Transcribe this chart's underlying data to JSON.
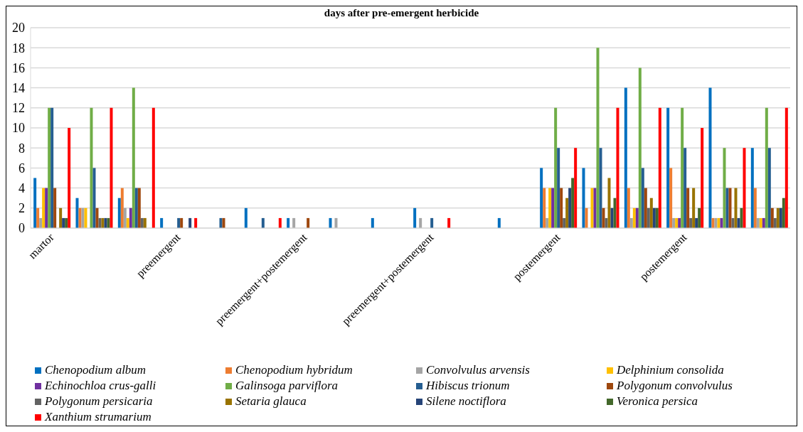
{
  "chart_data": {
    "type": "bar",
    "title": "days after pre-emergent herbicide",
    "categories": [
      "martor",
      null,
      null,
      "preemergent",
      null,
      null,
      "preemergent+postemergent",
      null,
      null,
      "preemergent+postemergent",
      null,
      null,
      "postemergent",
      null,
      null,
      "postemergent",
      null,
      null
    ],
    "ylim": [
      0,
      20
    ],
    "yticks": [
      0,
      2,
      4,
      6,
      8,
      10,
      12,
      14,
      16,
      18,
      20
    ],
    "grid": "y",
    "legend": "bottom",
    "series": [
      {
        "name": "Chenopodium album",
        "color": "#0070c0",
        "values": [
          5,
          3,
          3,
          1,
          0,
          2,
          1,
          1,
          1,
          2,
          0,
          1,
          6,
          6,
          14,
          12,
          14,
          8
        ]
      },
      {
        "name": "Chenopodium hybridum",
        "color": "#ed7d31",
        "values": [
          2,
          2,
          4,
          0,
          0,
          0,
          0,
          0,
          0,
          0,
          0,
          0,
          4,
          2,
          4,
          6,
          1,
          4
        ]
      },
      {
        "name": "Convolvulus arvensis",
        "color": "#a5a5a5",
        "values": [
          1,
          2,
          2,
          0,
          0,
          0,
          1,
          1,
          0,
          1,
          0,
          0,
          1,
          0,
          1,
          1,
          1,
          1
        ]
      },
      {
        "name": "Delphinium consolida",
        "color": "#ffc000",
        "values": [
          4,
          2,
          1,
          0,
          0,
          0,
          0,
          0,
          0,
          0,
          0,
          0,
          4,
          4,
          2,
          1,
          1,
          1
        ]
      },
      {
        "name": "Echinochloa crus-galli",
        "color": "#7030a0",
        "values": [
          4,
          0,
          2,
          0,
          0,
          0,
          0,
          0,
          0,
          0,
          0,
          0,
          4,
          4,
          2,
          1,
          1,
          1
        ]
      },
      {
        "name": "Galinsoga parviflora",
        "color": "#70ad47",
        "values": [
          12,
          12,
          14,
          0,
          0,
          0,
          0,
          0,
          0,
          0,
          0,
          0,
          12,
          18,
          16,
          12,
          8,
          12
        ]
      },
      {
        "name": "Hibiscus trionum",
        "color": "#255e91",
        "values": [
          12,
          6,
          4,
          1,
          1,
          1,
          0,
          0,
          0,
          1,
          0,
          0,
          8,
          8,
          6,
          8,
          4,
          8
        ]
      },
      {
        "name": "Polygonum convolvulus",
        "color": "#9e480e",
        "values": [
          4,
          2,
          4,
          1,
          1,
          0,
          1,
          0,
          0,
          0,
          0,
          0,
          4,
          2,
          4,
          4,
          4,
          2
        ]
      },
      {
        "name": "Polygonum persicaria",
        "color": "#636363",
        "values": [
          0,
          1,
          1,
          0,
          0,
          0,
          0,
          0,
          0,
          0,
          0,
          0,
          1,
          1,
          2,
          1,
          1,
          1
        ]
      },
      {
        "name": "Setaria glauca",
        "color": "#997300",
        "values": [
          2,
          1,
          1,
          0,
          0,
          0,
          0,
          0,
          0,
          0,
          0,
          0,
          3,
          5,
          3,
          4,
          4,
          2
        ]
      },
      {
        "name": "Silene noctiflora",
        "color": "#264478",
        "values": [
          1,
          1,
          0,
          1,
          0,
          0,
          0,
          0,
          0,
          0,
          0,
          0,
          4,
          2,
          2,
          1,
          1,
          2
        ]
      },
      {
        "name": "Veronica persica",
        "color": "#43682b",
        "values": [
          1,
          1,
          0,
          0,
          0,
          0,
          0,
          0,
          0,
          0,
          0,
          0,
          5,
          3,
          2,
          2,
          2,
          3
        ]
      },
      {
        "name": "Xanthium strumarium",
        "color": "#ff0000",
        "values": [
          10,
          12,
          12,
          1,
          0,
          1,
          0,
          0,
          0,
          1,
          0,
          0,
          8,
          12,
          12,
          10,
          8,
          12
        ]
      }
    ]
  }
}
